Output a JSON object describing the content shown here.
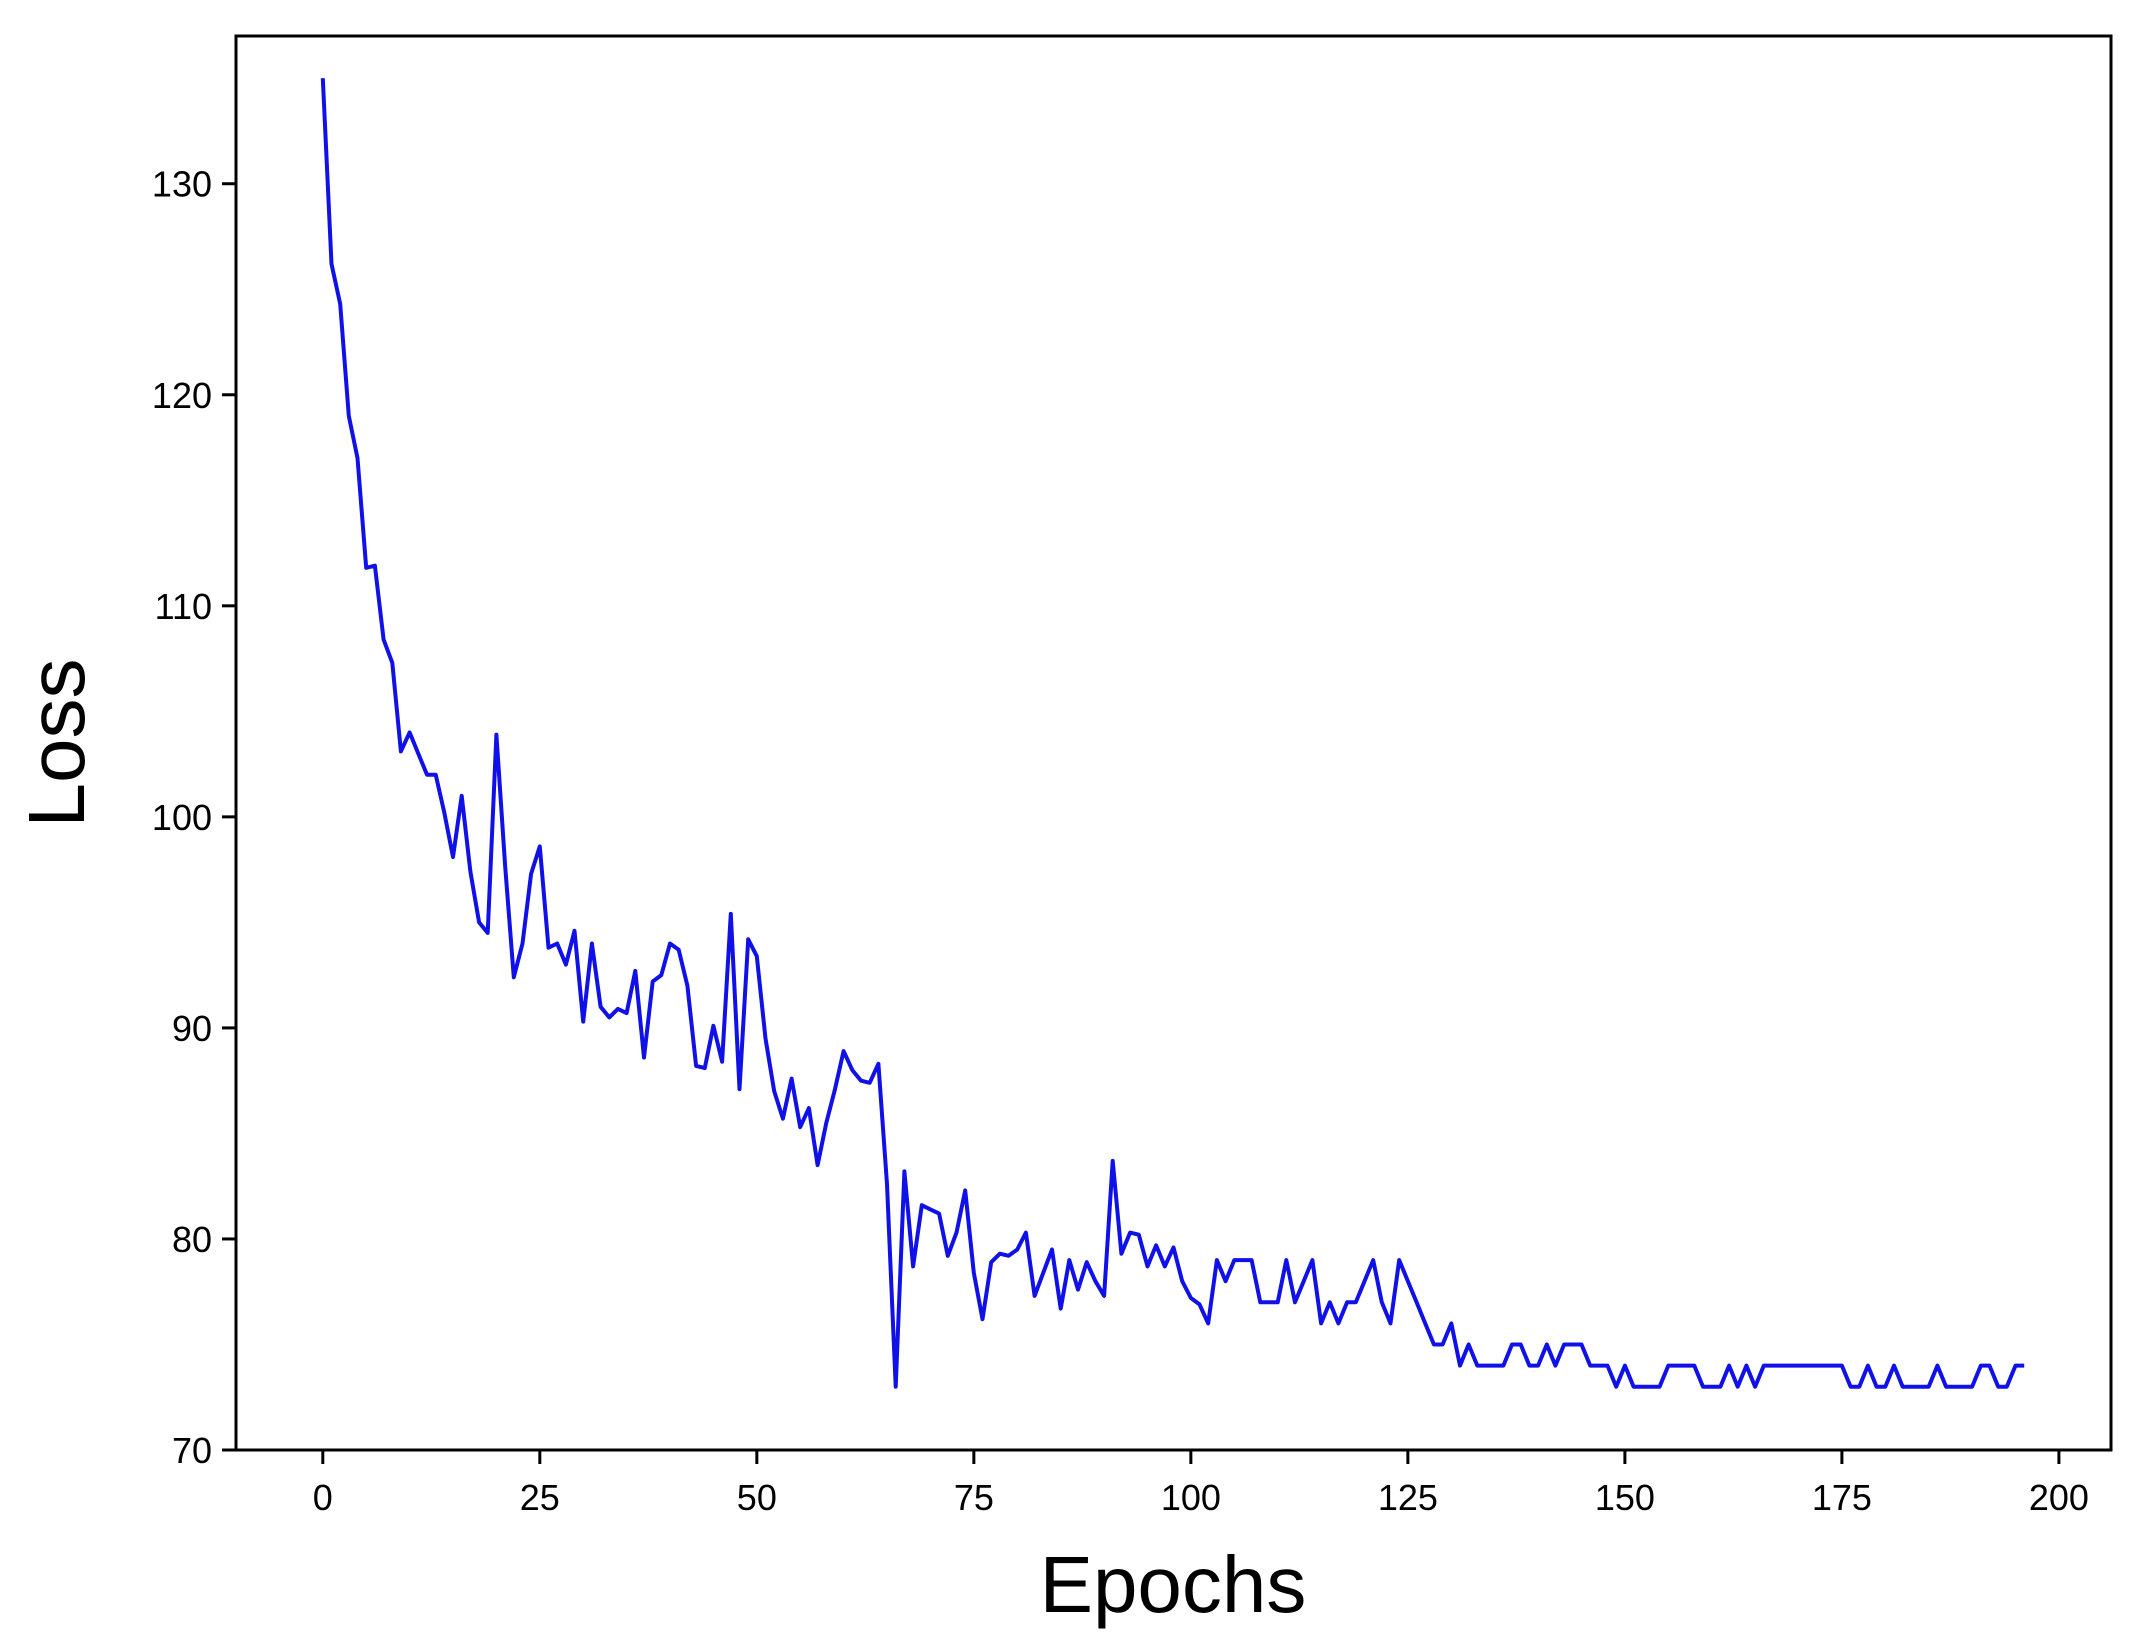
{
  "chart_data": {
    "type": "line",
    "title": "",
    "xlabel": "Epochs",
    "ylabel": "Loss",
    "xlim": [
      -10,
      206
    ],
    "ylim": [
      70,
      137
    ],
    "xticks": [
      0,
      25,
      50,
      75,
      100,
      125,
      150,
      175,
      200
    ],
    "yticks": [
      70,
      80,
      90,
      100,
      110,
      120,
      130
    ],
    "grid": false,
    "legend": "none",
    "colors": {
      "line": "#1010e8",
      "axes": "#000000"
    },
    "series": [
      {
        "values": [
          135,
          126.2,
          124.3,
          119,
          117,
          111.8,
          111.9,
          108.4,
          107.3,
          103.1,
          104,
          103,
          102,
          102,
          100.2,
          98.1,
          101,
          97.4,
          95,
          94.5,
          103.9,
          97.7,
          92.4,
          94,
          97.3,
          98.6,
          93.8,
          94,
          93,
          94.6,
          90.3,
          94,
          91,
          90.5,
          90.9,
          90.7,
          92.7,
          88.6,
          92.2,
          92.5,
          94,
          93.7,
          92,
          88.2,
          88.1,
          90.1,
          88.4,
          95.4,
          87.1,
          94.2,
          93.4,
          89.5,
          87,
          85.7,
          87.6,
          85.3,
          86.2,
          83.5,
          85.5,
          87.1,
          88.9,
          88,
          87.5,
          87.4,
          88.3,
          82.6,
          73,
          83.2,
          78.7,
          81.6,
          81.4,
          81.2,
          79.2,
          80.3,
          82.3,
          78.4,
          76.2,
          78.9,
          79.3,
          79.2,
          79.5,
          80.3,
          77.3,
          78.4,
          79.5,
          76.7,
          79,
          77.6,
          78.9,
          78,
          77.3,
          83.7,
          79.3,
          80.3,
          80.2,
          78.7,
          79.7,
          78.7,
          79.6,
          78,
          77.2,
          76.9,
          76,
          79,
          78,
          79,
          79,
          79,
          77,
          77,
          77,
          79,
          77,
          78,
          79,
          76,
          77,
          76,
          77,
          77,
          78,
          79,
          77,
          76,
          79,
          78,
          77,
          76,
          75,
          75,
          76,
          74,
          75,
          74,
          74,
          74,
          74,
          75,
          75,
          74,
          74,
          75,
          74,
          75,
          75,
          75,
          74,
          74,
          74,
          73,
          74,
          73,
          73,
          73,
          73,
          74,
          74,
          74,
          74,
          73,
          73,
          73,
          74,
          73,
          74,
          73,
          74,
          74,
          74,
          74,
          74,
          74,
          74,
          74,
          74,
          74,
          73,
          73,
          74,
          73,
          73,
          74,
          73,
          73,
          73,
          73,
          74,
          73,
          73,
          73,
          73,
          74,
          74,
          73,
          73,
          74,
          74
        ]
      }
    ]
  }
}
